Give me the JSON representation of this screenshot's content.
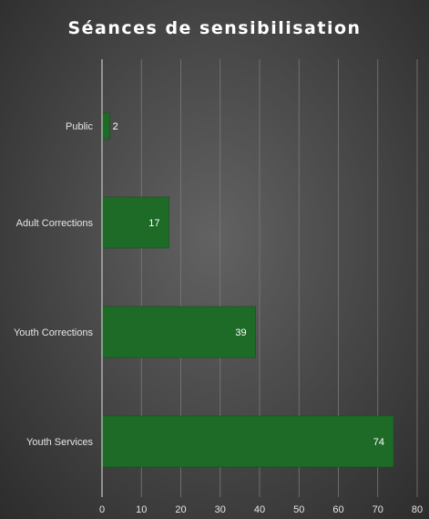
{
  "chart_data": {
    "type": "bar",
    "orientation": "horizontal",
    "title": "Séances de sensibilisation",
    "xlabel": "",
    "ylabel": "",
    "categories": [
      "Public",
      "Adult Corrections",
      "Youth Corrections",
      "Youth Services"
    ],
    "values": [
      2,
      17,
      39,
      74
    ],
    "data_labels": [
      "2",
      "17",
      "39",
      "74"
    ],
    "xlim": [
      0,
      80
    ],
    "x_ticks": [
      "0",
      "10",
      "20",
      "30",
      "40",
      "50",
      "60",
      "70",
      "80"
    ],
    "grid": "vertical",
    "legend": "none",
    "colors": {
      "bar": "#1e6b27",
      "text": "#ffffff",
      "axis_text": "#e6e6e6",
      "gridline": "#7a7a7a",
      "axis_line": "#c8c8c8"
    }
  }
}
